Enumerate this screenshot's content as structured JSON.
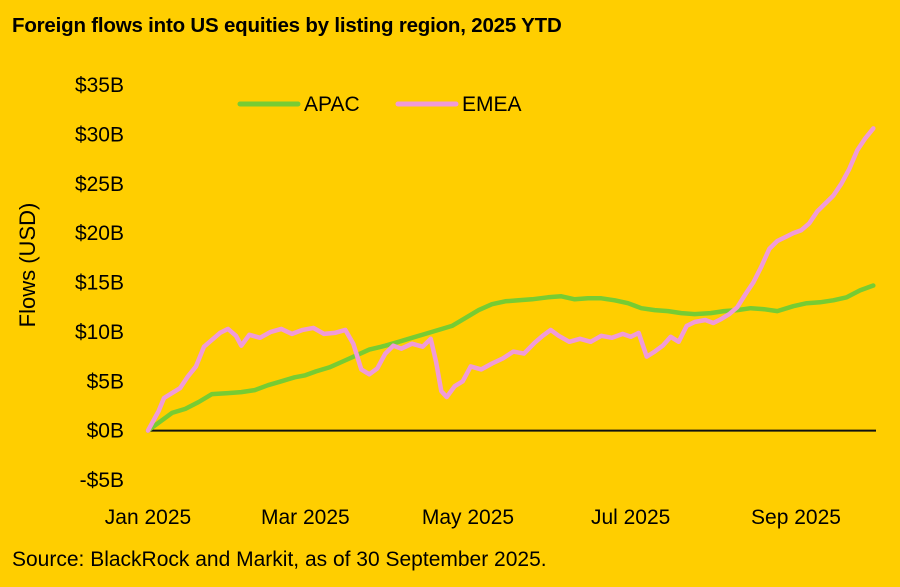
{
  "title": "Foreign flows into US equities by listing region, 2025 YTD",
  "source": "Source: BlackRock and Markit, as of 30 September 2025.",
  "chart_data": {
    "type": "line",
    "title": "Foreign flows into US equities by listing region, 2025 YTD",
    "xlabel": "",
    "ylabel": "Flows (USD)",
    "ylim": [
      -5,
      35
    ],
    "y_unit": "$B",
    "yticks": [
      -5,
      0,
      5,
      10,
      15,
      20,
      25,
      30,
      35
    ],
    "ytick_labels": [
      "-$5B",
      "$0B",
      "$5B",
      "$10B",
      "$15B",
      "$20B",
      "$25B",
      "$30B",
      "$35B"
    ],
    "xlim": [
      "2025-01-01",
      "2025-10-01"
    ],
    "xticks": [
      "2025-01-01",
      "2025-03-01",
      "2025-05-01",
      "2025-07-01",
      "2025-09-01"
    ],
    "xtick_labels": [
      "Jan 2025",
      "Mar 2025",
      "May 2025",
      "Jul 2025",
      "Sep 2025"
    ],
    "grid": false,
    "legend_position": "top",
    "series": [
      {
        "name": "APAC",
        "color": "#77CC33",
        "points": [
          [
            "2025-01-01",
            0
          ],
          [
            "2025-01-05",
            0.8
          ],
          [
            "2025-01-10",
            1.8
          ],
          [
            "2025-01-15",
            2.2
          ],
          [
            "2025-01-20",
            2.9
          ],
          [
            "2025-01-25",
            3.7
          ],
          [
            "2025-01-31",
            3.8
          ],
          [
            "2025-02-05",
            3.9
          ],
          [
            "2025-02-10",
            4.1
          ],
          [
            "2025-02-15",
            4.6
          ],
          [
            "2025-02-20",
            5.0
          ],
          [
            "2025-02-25",
            5.4
          ],
          [
            "2025-03-01",
            5.6
          ],
          [
            "2025-03-05",
            6.0
          ],
          [
            "2025-03-10",
            6.4
          ],
          [
            "2025-03-15",
            7.0
          ],
          [
            "2025-03-20",
            7.6
          ],
          [
            "2025-03-25",
            8.2
          ],
          [
            "2025-03-31",
            8.6
          ],
          [
            "2025-04-05",
            9.0
          ],
          [
            "2025-04-10",
            9.4
          ],
          [
            "2025-04-15",
            9.8
          ],
          [
            "2025-04-20",
            10.2
          ],
          [
            "2025-04-25",
            10.6
          ],
          [
            "2025-04-30",
            11.4
          ],
          [
            "2025-05-05",
            12.2
          ],
          [
            "2025-05-10",
            12.8
          ],
          [
            "2025-05-15",
            13.1
          ],
          [
            "2025-05-20",
            13.2
          ],
          [
            "2025-05-25",
            13.3
          ],
          [
            "2025-05-31",
            13.5
          ],
          [
            "2025-06-05",
            13.6
          ],
          [
            "2025-06-10",
            13.3
          ],
          [
            "2025-06-15",
            13.4
          ],
          [
            "2025-06-20",
            13.4
          ],
          [
            "2025-06-25",
            13.2
          ],
          [
            "2025-06-30",
            12.9
          ],
          [
            "2025-07-05",
            12.4
          ],
          [
            "2025-07-10",
            12.2
          ],
          [
            "2025-07-15",
            12.1
          ],
          [
            "2025-07-20",
            11.9
          ],
          [
            "2025-07-25",
            11.8
          ],
          [
            "2025-07-31",
            11.9
          ],
          [
            "2025-08-05",
            12.1
          ],
          [
            "2025-08-10",
            12.2
          ],
          [
            "2025-08-15",
            12.4
          ],
          [
            "2025-08-20",
            12.3
          ],
          [
            "2025-08-25",
            12.1
          ],
          [
            "2025-08-31",
            12.6
          ],
          [
            "2025-09-05",
            12.9
          ],
          [
            "2025-09-10",
            13.0
          ],
          [
            "2025-09-15",
            13.2
          ],
          [
            "2025-09-20",
            13.5
          ],
          [
            "2025-09-25",
            14.2
          ],
          [
            "2025-09-30",
            14.7
          ]
        ]
      },
      {
        "name": "EMEA",
        "color": "#F09BD8",
        "points": [
          [
            "2025-01-01",
            0
          ],
          [
            "2025-01-03",
            1.0
          ],
          [
            "2025-01-05",
            2.0
          ],
          [
            "2025-01-07",
            3.3
          ],
          [
            "2025-01-10",
            3.8
          ],
          [
            "2025-01-13",
            4.3
          ],
          [
            "2025-01-16",
            5.5
          ],
          [
            "2025-01-19",
            6.5
          ],
          [
            "2025-01-22",
            8.5
          ],
          [
            "2025-01-25",
            9.2
          ],
          [
            "2025-01-28",
            9.9
          ],
          [
            "2025-01-31",
            10.3
          ],
          [
            "2025-02-03",
            9.6
          ],
          [
            "2025-02-05",
            8.6
          ],
          [
            "2025-02-08",
            9.7
          ],
          [
            "2025-02-12",
            9.4
          ],
          [
            "2025-02-16",
            10.0
          ],
          [
            "2025-02-20",
            10.3
          ],
          [
            "2025-02-24",
            9.8
          ],
          [
            "2025-02-28",
            10.2
          ],
          [
            "2025-03-04",
            10.4
          ],
          [
            "2025-03-08",
            9.8
          ],
          [
            "2025-03-12",
            9.9
          ],
          [
            "2025-03-16",
            10.2
          ],
          [
            "2025-03-19",
            8.8
          ],
          [
            "2025-03-22",
            6.2
          ],
          [
            "2025-03-25",
            5.7
          ],
          [
            "2025-03-28",
            6.3
          ],
          [
            "2025-03-31",
            7.8
          ],
          [
            "2025-04-03",
            8.6
          ],
          [
            "2025-04-06",
            8.3
          ],
          [
            "2025-04-10",
            8.8
          ],
          [
            "2025-04-14",
            8.5
          ],
          [
            "2025-04-17",
            9.3
          ],
          [
            "2025-04-19",
            7.0
          ],
          [
            "2025-04-21",
            4.0
          ],
          [
            "2025-04-23",
            3.4
          ],
          [
            "2025-04-26",
            4.5
          ],
          [
            "2025-04-29",
            5.0
          ],
          [
            "2025-05-02",
            6.5
          ],
          [
            "2025-05-06",
            6.2
          ],
          [
            "2025-05-10",
            6.8
          ],
          [
            "2025-05-14",
            7.3
          ],
          [
            "2025-05-18",
            8.0
          ],
          [
            "2025-05-22",
            7.8
          ],
          [
            "2025-05-26",
            8.9
          ],
          [
            "2025-05-29",
            9.6
          ],
          [
            "2025-06-01",
            10.2
          ],
          [
            "2025-06-04",
            9.6
          ],
          [
            "2025-06-08",
            9.0
          ],
          [
            "2025-06-12",
            9.3
          ],
          [
            "2025-06-16",
            9.0
          ],
          [
            "2025-06-20",
            9.6
          ],
          [
            "2025-06-24",
            9.4
          ],
          [
            "2025-06-28",
            9.8
          ],
          [
            "2025-07-01",
            9.5
          ],
          [
            "2025-07-04",
            9.9
          ],
          [
            "2025-07-07",
            7.5
          ],
          [
            "2025-07-10",
            8.0
          ],
          [
            "2025-07-13",
            8.6
          ],
          [
            "2025-07-16",
            9.5
          ],
          [
            "2025-07-19",
            9.0
          ],
          [
            "2025-07-22",
            10.6
          ],
          [
            "2025-07-25",
            11.0
          ],
          [
            "2025-07-29",
            11.2
          ],
          [
            "2025-08-01",
            10.9
          ],
          [
            "2025-08-04",
            11.3
          ],
          [
            "2025-08-07",
            11.8
          ],
          [
            "2025-08-10",
            12.5
          ],
          [
            "2025-08-13",
            13.8
          ],
          [
            "2025-08-16",
            15.0
          ],
          [
            "2025-08-19",
            16.6
          ],
          [
            "2025-08-22",
            18.4
          ],
          [
            "2025-08-25",
            19.2
          ],
          [
            "2025-08-28",
            19.6
          ],
          [
            "2025-08-31",
            20.0
          ],
          [
            "2025-09-03",
            20.3
          ],
          [
            "2025-09-06",
            21.0
          ],
          [
            "2025-09-09",
            22.2
          ],
          [
            "2025-09-12",
            23.0
          ],
          [
            "2025-09-15",
            23.8
          ],
          [
            "2025-09-18",
            25.0
          ],
          [
            "2025-09-21",
            26.5
          ],
          [
            "2025-09-24",
            28.4
          ],
          [
            "2025-09-27",
            29.6
          ],
          [
            "2025-09-30",
            30.6
          ]
        ]
      }
    ]
  }
}
